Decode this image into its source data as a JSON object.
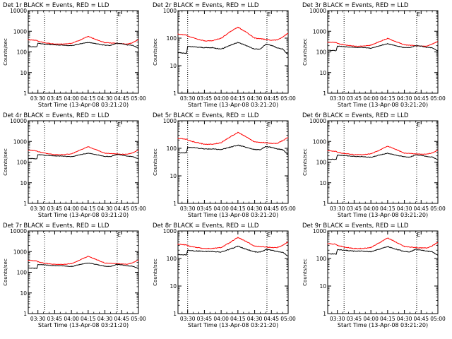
{
  "figure": {
    "background": "#ffffff",
    "axis_color": "#000000",
    "events_color": "#000000",
    "lld_color": "#ff0000",
    "marker_text": "E"
  },
  "chart_data": [
    {
      "type": "line",
      "title": "Det 1r BLACK = Events, RED = LLD",
      "xlabel": "Start Time (13-Apr-08 03:21:20)",
      "ylabel": "Counts/sec",
      "yscale": "log",
      "ylim": [
        1,
        10000
      ],
      "xlim": [
        "03:21:20",
        "05:00:00"
      ],
      "x_ticklabels": [
        "03:30",
        "03:45",
        "04:00",
        "04:15",
        "04:30",
        "04:45",
        "05:00"
      ],
      "y_ticklabels": [
        "1",
        "10",
        "100",
        "1000",
        "10000"
      ],
      "vlines": [
        "03:36",
        "04:41"
      ],
      "x": [
        "03:21",
        "03:29",
        "03:30",
        "03:36",
        "03:45",
        "03:52",
        "04:00",
        "04:08",
        "04:15",
        "04:22",
        "04:30",
        "04:35",
        "04:40",
        "04:45",
        "04:50",
        "04:55",
        "05:00"
      ],
      "series": [
        {
          "name": "LLD",
          "color": "red",
          "values": [
            390,
            360,
            330,
            280,
            240,
            240,
            260,
            380,
            570,
            400,
            280,
            270,
            260,
            250,
            240,
            280,
            400
          ]
        },
        {
          "name": "Events",
          "color": "black",
          "values": [
            180,
            175,
            260,
            240,
            220,
            215,
            200,
            250,
            290,
            250,
            210,
            205,
            260,
            250,
            215,
            210,
            150
          ]
        }
      ]
    },
    {
      "type": "line",
      "title": "Det 2r BLACK = Events, RED = LLD",
      "xlabel": "Start Time (13-Apr-08 03:21:20)",
      "ylabel": "Counts/sec",
      "yscale": "log",
      "ylim": [
        1,
        1000
      ],
      "xlim": [
        "03:21:20",
        "05:00:00"
      ],
      "x_ticklabels": [
        "03:30",
        "03:45",
        "04:00",
        "04:15",
        "04:30",
        "04:45",
        "05:00"
      ],
      "y_ticklabels": [
        "1",
        "10",
        "100",
        "1000"
      ],
      "vlines": [
        "03:30",
        "04:41"
      ],
      "x": [
        "03:21",
        "03:29",
        "03:30",
        "03:36",
        "03:45",
        "03:52",
        "04:00",
        "04:08",
        "04:15",
        "04:22",
        "04:30",
        "04:35",
        "04:40",
        "04:45",
        "04:50",
        "04:55",
        "05:00"
      ],
      "series": [
        {
          "name": "LLD",
          "color": "red",
          "values": [
            140,
            130,
            120,
            100,
            80,
            80,
            100,
            170,
            250,
            170,
            100,
            95,
            90,
            85,
            85,
            110,
            150
          ]
        },
        {
          "name": "Events",
          "color": "black",
          "values": [
            30,
            28,
            50,
            48,
            45,
            45,
            40,
            55,
            70,
            55,
            40,
            40,
            60,
            55,
            45,
            40,
            25
          ]
        }
      ]
    },
    {
      "type": "line",
      "title": "Det 3r BLACK = Events, RED = LLD",
      "xlabel": "Start Time (13-Apr-08 03:21:20)",
      "ylabel": "Counts/sec",
      "yscale": "log",
      "ylim": [
        1,
        10000
      ],
      "xlim": [
        "03:21:20",
        "05:00:00"
      ],
      "x_ticklabels": [
        "03:30",
        "03:45",
        "04:00",
        "04:15",
        "04:30",
        "04:45",
        "05:00"
      ],
      "y_ticklabels": [
        "1",
        "10",
        "100",
        "1000",
        "10000"
      ],
      "vlines": [
        "03:36",
        "04:41"
      ],
      "x": [
        "03:21",
        "03:29",
        "03:30",
        "03:36",
        "03:45",
        "03:52",
        "04:00",
        "04:08",
        "04:15",
        "04:22",
        "04:30",
        "04:35",
        "04:40",
        "04:45",
        "04:50",
        "04:55",
        "05:00"
      ],
      "series": [
        {
          "name": "LLD",
          "color": "red",
          "values": [
            300,
            280,
            260,
            220,
            190,
            190,
            210,
            320,
            450,
            320,
            220,
            210,
            200,
            190,
            190,
            240,
            320
          ]
        },
        {
          "name": "Events",
          "color": "black",
          "values": [
            120,
            115,
            190,
            180,
            165,
            165,
            150,
            200,
            250,
            200,
            160,
            160,
            200,
            190,
            165,
            160,
            110
          ]
        }
      ]
    },
    {
      "type": "line",
      "title": "Det 4r BLACK = Events, RED = LLD",
      "xlabel": "Start Time (13-Apr-08 03:21:20)",
      "ylabel": "Counts/sec",
      "yscale": "log",
      "ylim": [
        1,
        10000
      ],
      "xlim": [
        "03:21:20",
        "05:00:00"
      ],
      "x_ticklabels": [
        "03:30",
        "03:45",
        "04:00",
        "04:15",
        "04:30",
        "04:45",
        "05:00"
      ],
      "y_ticklabels": [
        "1",
        "10",
        "100",
        "1000",
        "10000"
      ],
      "vlines": [
        "03:36",
        "04:41"
      ],
      "x": [
        "03:21",
        "03:29",
        "03:30",
        "03:36",
        "03:45",
        "03:52",
        "04:00",
        "04:08",
        "04:15",
        "04:22",
        "04:30",
        "04:35",
        "04:40",
        "04:45",
        "04:50",
        "04:55",
        "05:00"
      ],
      "series": [
        {
          "name": "LLD",
          "color": "red",
          "values": [
            380,
            350,
            320,
            270,
            230,
            230,
            250,
            380,
            560,
            400,
            270,
            260,
            250,
            240,
            240,
            280,
            380
          ]
        },
        {
          "name": "Events",
          "color": "black",
          "values": [
            150,
            145,
            230,
            215,
            200,
            195,
            180,
            230,
            270,
            230,
            190,
            185,
            230,
            220,
            195,
            185,
            140
          ]
        }
      ]
    },
    {
      "type": "line",
      "title": "Det 5r BLACK = Events, RED = LLD",
      "xlabel": "Start Time (13-Apr-08 03:21:20)",
      "ylabel": "Counts/sec",
      "yscale": "log",
      "ylim": [
        1,
        1000
      ],
      "xlim": [
        "03:21:20",
        "05:00:00"
      ],
      "x_ticklabels": [
        "03:30",
        "03:45",
        "04:00",
        "04:15",
        "04:30",
        "04:45",
        "05:00"
      ],
      "y_ticklabels": [
        "1",
        "10",
        "100",
        "1000"
      ],
      "vlines": [
        "03:30",
        "04:41"
      ],
      "x": [
        "03:21",
        "03:29",
        "03:30",
        "03:36",
        "03:45",
        "03:52",
        "04:00",
        "04:08",
        "04:15",
        "04:22",
        "04:30",
        "04:35",
        "04:40",
        "04:45",
        "04:50",
        "04:55",
        "05:00"
      ],
      "series": [
        {
          "name": "LLD",
          "color": "red",
          "values": [
            230,
            215,
            200,
            170,
            140,
            140,
            160,
            260,
            380,
            270,
            170,
            165,
            160,
            150,
            150,
            190,
            250
          ]
        },
        {
          "name": "Events",
          "color": "black",
          "values": [
            70,
            68,
            110,
            105,
            95,
            95,
            90,
            110,
            130,
            110,
            90,
            90,
            115,
            110,
            95,
            90,
            60
          ]
        }
      ]
    },
    {
      "type": "line",
      "title": "Det 6r BLACK = Events, RED = LLD",
      "xlabel": "Start Time (13-Apr-08 03:21:20)",
      "ylabel": "Counts/sec",
      "yscale": "log",
      "ylim": [
        1,
        10000
      ],
      "xlim": [
        "03:21:20",
        "05:00:00"
      ],
      "x_ticklabels": [
        "03:30",
        "03:45",
        "04:00",
        "04:15",
        "04:30",
        "04:45",
        "05:00"
      ],
      "y_ticklabels": [
        "1",
        "10",
        "100",
        "1000",
        "10000"
      ],
      "vlines": [
        "03:36",
        "04:41"
      ],
      "x": [
        "03:21",
        "03:29",
        "03:30",
        "03:36",
        "03:45",
        "03:52",
        "04:00",
        "04:08",
        "04:15",
        "04:22",
        "04:30",
        "04:35",
        "04:40",
        "04:45",
        "04:50",
        "04:55",
        "05:00"
      ],
      "series": [
        {
          "name": "LLD",
          "color": "red",
          "values": [
            360,
            330,
            300,
            260,
            230,
            230,
            250,
            380,
            600,
            420,
            270,
            260,
            250,
            240,
            240,
            280,
            380
          ]
        },
        {
          "name": "Events",
          "color": "black",
          "values": [
            140,
            135,
            220,
            205,
            190,
            185,
            170,
            220,
            270,
            220,
            180,
            175,
            220,
            210,
            185,
            175,
            130
          ]
        }
      ]
    },
    {
      "type": "line",
      "title": "Det 7r BLACK = Events, RED = LLD",
      "xlabel": "Start Time (13-Apr-08 03:21:20)",
      "ylabel": "Counts/sec",
      "yscale": "log",
      "ylim": [
        1,
        10000
      ],
      "xlim": [
        "03:21:20",
        "05:00:00"
      ],
      "x_ticklabels": [
        "03:30",
        "03:45",
        "04:00",
        "04:15",
        "04:30",
        "04:45",
        "05:00"
      ],
      "y_ticklabels": [
        "1",
        "10",
        "100",
        "1000",
        "10000"
      ],
      "vlines": [
        "03:36",
        "04:41"
      ],
      "x": [
        "03:21",
        "03:29",
        "03:30",
        "03:36",
        "03:45",
        "03:52",
        "04:00",
        "04:08",
        "04:15",
        "04:22",
        "04:30",
        "04:35",
        "04:40",
        "04:45",
        "04:50",
        "04:55",
        "05:00"
      ],
      "series": [
        {
          "name": "LLD",
          "color": "red",
          "values": [
            380,
            350,
            320,
            270,
            240,
            240,
            260,
            400,
            600,
            420,
            280,
            270,
            260,
            250,
            250,
            290,
            400
          ]
        },
        {
          "name": "Events",
          "color": "black",
          "values": [
            160,
            155,
            240,
            225,
            210,
            205,
            190,
            240,
            280,
            240,
            195,
            190,
            240,
            230,
            205,
            195,
            150
          ]
        }
      ]
    },
    {
      "type": "line",
      "title": "Det 8r BLACK = Events, RED = LLD",
      "xlabel": "Start Time (13-Apr-08 03:21:20)",
      "ylabel": "Counts/sec",
      "yscale": "log",
      "ylim": [
        1,
        1000
      ],
      "xlim": [
        "03:21:20",
        "05:00:00"
      ],
      "x_ticklabels": [
        "03:30",
        "03:45",
        "04:00",
        "04:15",
        "04:30",
        "04:45",
        "05:00"
      ],
      "y_ticklabels": [
        "1",
        "10",
        "100",
        "1000"
      ],
      "vlines": [
        "03:30",
        "04:41"
      ],
      "x": [
        "03:21",
        "03:29",
        "03:30",
        "03:36",
        "03:45",
        "03:52",
        "04:00",
        "04:08",
        "04:15",
        "04:22",
        "04:30",
        "04:35",
        "04:40",
        "04:45",
        "04:50",
        "04:55",
        "05:00"
      ],
      "series": [
        {
          "name": "LLD",
          "color": "red",
          "values": [
            330,
            310,
            290,
            260,
            230,
            230,
            250,
            380,
            580,
            420,
            280,
            270,
            260,
            250,
            250,
            300,
            400
          ]
        },
        {
          "name": "Events",
          "color": "black",
          "values": [
            140,
            135,
            200,
            190,
            180,
            180,
            170,
            220,
            280,
            220,
            175,
            170,
            210,
            200,
            180,
            170,
            120
          ]
        }
      ]
    },
    {
      "type": "line",
      "title": "Det 9r BLACK = Events, RED = LLD",
      "xlabel": "Start Time (13-Apr-08 03:21:20)",
      "ylabel": "Counts/sec",
      "yscale": "log",
      "ylim": [
        1,
        1000
      ],
      "xlim": [
        "03:21:20",
        "05:00:00"
      ],
      "x_ticklabels": [
        "03:30",
        "03:45",
        "04:00",
        "04:15",
        "04:30",
        "04:45",
        "05:00"
      ],
      "y_ticklabels": [
        "1",
        "10",
        "100",
        "1000"
      ],
      "vlines": [
        "03:36",
        "04:41"
      ],
      "x": [
        "03:21",
        "03:29",
        "03:30",
        "03:36",
        "03:45",
        "03:52",
        "04:00",
        "04:08",
        "04:15",
        "04:22",
        "04:30",
        "04:35",
        "04:40",
        "04:45",
        "04:50",
        "04:55",
        "05:00"
      ],
      "series": [
        {
          "name": "LLD",
          "color": "red",
          "values": [
            350,
            330,
            300,
            260,
            230,
            230,
            250,
            380,
            560,
            400,
            270,
            260,
            250,
            240,
            240,
            290,
            380
          ]
        },
        {
          "name": "Events",
          "color": "black",
          "values": [
            150,
            145,
            210,
            200,
            185,
            185,
            175,
            220,
            270,
            220,
            180,
            175,
            215,
            205,
            185,
            175,
            130
          ]
        }
      ]
    }
  ]
}
